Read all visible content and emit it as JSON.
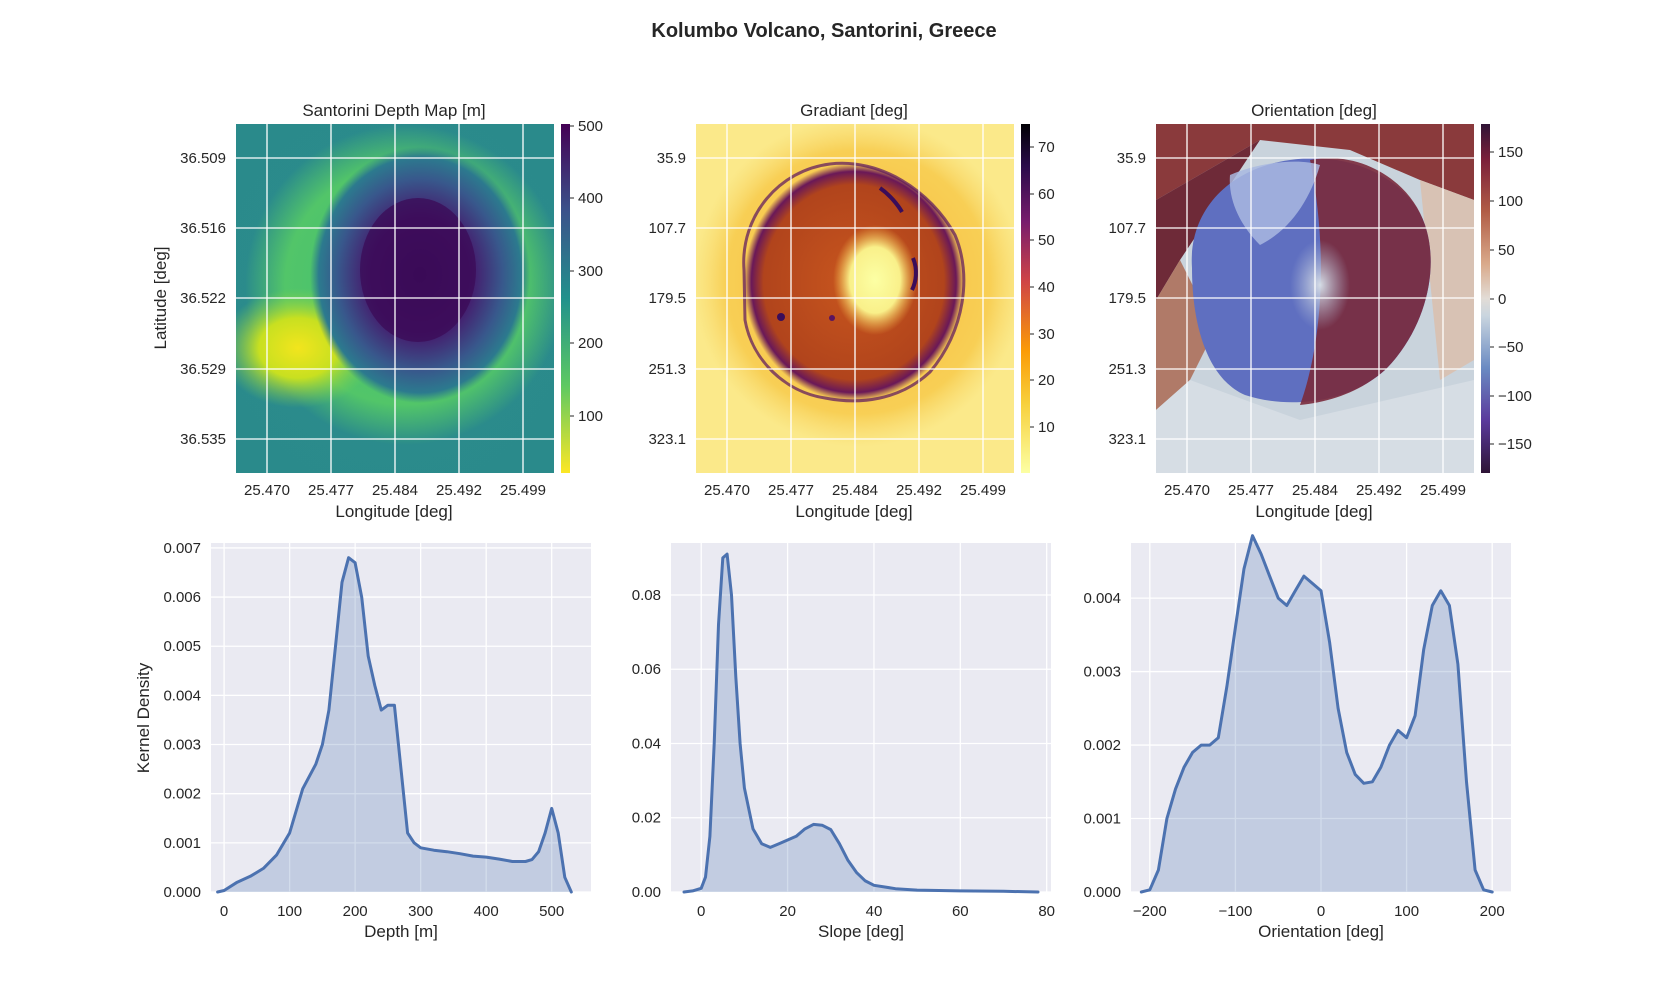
{
  "title": "Kolumbo Volcano, Santorini, Greece",
  "colors": {
    "kde_line": "#4c72b0",
    "kde_fill": "#4c72b0",
    "plot_background": "#eaeaf2",
    "grid": "#ffffff"
  },
  "chart_data": [
    {
      "type": "heatmap",
      "title": "Santorini Depth Map [m]",
      "xlabel": "Longitude [deg]",
      "ylabel": "Latitude [deg]",
      "xticks": [
        "25.470",
        "25.477",
        "25.484",
        "25.492",
        "25.499"
      ],
      "yticks": [
        "36.509",
        "36.516",
        "36.522",
        "36.529",
        "36.535"
      ],
      "colormap": "viridis_r",
      "colorbar_range": [
        20,
        500
      ],
      "colorbar_ticks": [
        100,
        200,
        300,
        400,
        500
      ],
      "grid": true
    },
    {
      "type": "heatmap",
      "title": "Gradiant [deg]",
      "xlabel": "Longitude [deg]",
      "ylabel": "",
      "xticks": [
        "25.470",
        "25.477",
        "25.484",
        "25.492",
        "25.499"
      ],
      "yticks": [
        "35.9",
        "107.7",
        "179.5",
        "251.3",
        "323.1"
      ],
      "colormap": "inferno_r",
      "colorbar_range": [
        0,
        75
      ],
      "colorbar_ticks": [
        10,
        20,
        30,
        40,
        50,
        60,
        70
      ],
      "grid": true
    },
    {
      "type": "heatmap",
      "title": "Orientation [deg]",
      "xlabel": "Longitude [deg]",
      "ylabel": "",
      "xticks": [
        "25.470",
        "25.477",
        "25.484",
        "25.492",
        "25.499"
      ],
      "yticks": [
        "35.9",
        "107.7",
        "179.5",
        "251.3",
        "323.1"
      ],
      "colormap": "twilight_shifted",
      "colorbar_range": [
        -180,
        180
      ],
      "colorbar_ticks": [
        150,
        100,
        50,
        0,
        -50,
        -100,
        -150
      ],
      "colorbar_ticklabels": [
        "150",
        "100",
        "50",
        "0",
        "−50",
        "−100",
        "−150"
      ],
      "grid": true
    },
    {
      "type": "area",
      "xlabel": "Depth [m]",
      "ylabel": "Kernel Density",
      "xlim": [
        -20,
        560
      ],
      "ylim": [
        0,
        0.0071
      ],
      "xticks": [
        0,
        100,
        200,
        300,
        400,
        500
      ],
      "xticklabels": [
        "0",
        "100",
        "200",
        "300",
        "400",
        "500"
      ],
      "yticks": [
        0,
        0.001,
        0.002,
        0.003,
        0.004,
        0.005,
        0.006,
        0.007
      ],
      "yticklabels": [
        "0.000",
        "0.001",
        "0.002",
        "0.003",
        "0.004",
        "0.005",
        "0.006",
        "0.007"
      ],
      "grid": true,
      "series": [
        {
          "x": [
            -10,
            0,
            20,
            40,
            60,
            80,
            100,
            120,
            140,
            150,
            160,
            170,
            180,
            190,
            200,
            210,
            220,
            230,
            240,
            250,
            260,
            270,
            280,
            290,
            300,
            320,
            340,
            360,
            380,
            400,
            420,
            440,
            460,
            470,
            480,
            490,
            500,
            510,
            520,
            530
          ],
          "y": [
            0,
            3e-05,
            0.0002,
            0.00032,
            0.00048,
            0.00075,
            0.0012,
            0.0021,
            0.0026,
            0.003,
            0.0037,
            0.005,
            0.0063,
            0.0068,
            0.0067,
            0.006,
            0.0048,
            0.0042,
            0.0037,
            0.0038,
            0.0038,
            0.0025,
            0.0012,
            0.001,
            0.0009,
            0.00085,
            0.00082,
            0.00078,
            0.00073,
            0.00071,
            0.00067,
            0.00062,
            0.00062,
            0.00066,
            0.00082,
            0.0012,
            0.0017,
            0.0012,
            0.0003,
            0
          ]
        }
      ]
    },
    {
      "type": "area",
      "xlabel": "Slope [deg]",
      "ylabel": "",
      "xlim": [
        -7,
        81
      ],
      "ylim": [
        0,
        0.094
      ],
      "xticks": [
        0,
        20,
        40,
        60,
        80
      ],
      "xticklabels": [
        "0",
        "20",
        "40",
        "60",
        "80"
      ],
      "yticks": [
        0,
        0.02,
        0.04,
        0.06,
        0.08
      ],
      "yticklabels": [
        "0.00",
        "0.02",
        "0.04",
        "0.06",
        "0.08"
      ],
      "grid": true,
      "series": [
        {
          "x": [
            -4,
            -2,
            0,
            1,
            2,
            3,
            4,
            5,
            6,
            7,
            8,
            9,
            10,
            12,
            14,
            16,
            18,
            20,
            22,
            24,
            26,
            28,
            30,
            32,
            34,
            36,
            38,
            40,
            45,
            50,
            60,
            70,
            78
          ],
          "y": [
            0,
            0.0003,
            0.001,
            0.004,
            0.015,
            0.04,
            0.072,
            0.09,
            0.091,
            0.08,
            0.058,
            0.04,
            0.028,
            0.017,
            0.013,
            0.012,
            0.013,
            0.014,
            0.015,
            0.017,
            0.0182,
            0.018,
            0.0168,
            0.013,
            0.0085,
            0.0052,
            0.003,
            0.0018,
            0.0009,
            0.0005,
            0.0003,
            0.0002,
            0
          ]
        }
      ]
    },
    {
      "type": "area",
      "xlabel": "Orientation [deg]",
      "ylabel": "",
      "xlim": [
        -222,
        222
      ],
      "ylim": [
        0,
        0.00475
      ],
      "xticks": [
        -200,
        -100,
        0,
        100,
        200
      ],
      "xticklabels": [
        "−200",
        "−100",
        "0",
        "100",
        "200"
      ],
      "yticks": [
        0,
        0.001,
        0.002,
        0.003,
        0.004
      ],
      "yticklabels": [
        "0.000",
        "0.001",
        "0.002",
        "0.003",
        "0.004"
      ],
      "grid": true,
      "series": [
        {
          "x": [
            -210,
            -200,
            -190,
            -180,
            -170,
            -160,
            -150,
            -140,
            -130,
            -120,
            -110,
            -100,
            -90,
            -80,
            -70,
            -60,
            -50,
            -40,
            -30,
            -20,
            -10,
            0,
            10,
            20,
            30,
            40,
            50,
            60,
            70,
            80,
            90,
            100,
            110,
            120,
            130,
            140,
            150,
            160,
            170,
            180,
            190,
            200
          ],
          "y": [
            0,
            3e-05,
            0.0003,
            0.001,
            0.0014,
            0.0017,
            0.0019,
            0.002,
            0.002,
            0.0021,
            0.0028,
            0.0036,
            0.0044,
            0.00485,
            0.0046,
            0.0043,
            0.004,
            0.0039,
            0.0041,
            0.0043,
            0.0042,
            0.0041,
            0.0034,
            0.0025,
            0.0019,
            0.0016,
            0.00148,
            0.0015,
            0.0017,
            0.002,
            0.0022,
            0.0021,
            0.0024,
            0.0033,
            0.0039,
            0.0041,
            0.0039,
            0.0031,
            0.0015,
            0.0003,
            3e-05,
            0
          ]
        }
      ]
    }
  ]
}
